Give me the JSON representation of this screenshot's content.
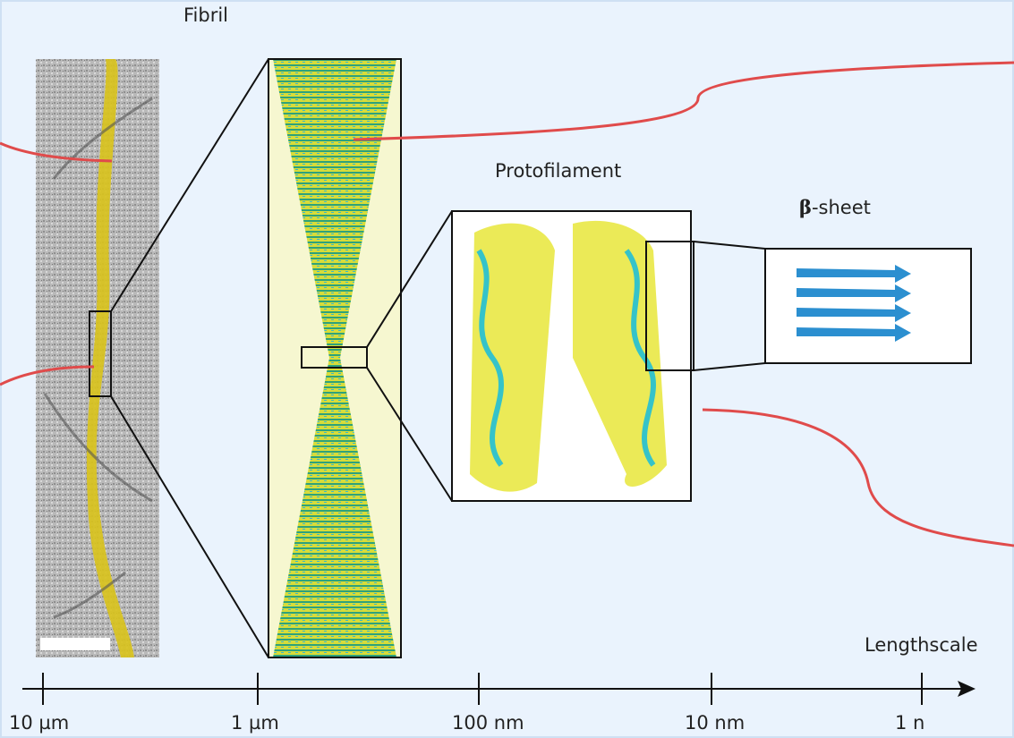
{
  "labels": {
    "fibril": "Fibril",
    "protofilament": "Protofilament",
    "beta_sheet": {
      "symbol": "β",
      "text": "-sheet"
    },
    "lengthscale": "Lengthscale"
  },
  "scale": {
    "ticks": [
      "10 µm",
      "1 µm",
      "100 nm",
      "10 nm",
      "1 n"
    ]
  }
}
